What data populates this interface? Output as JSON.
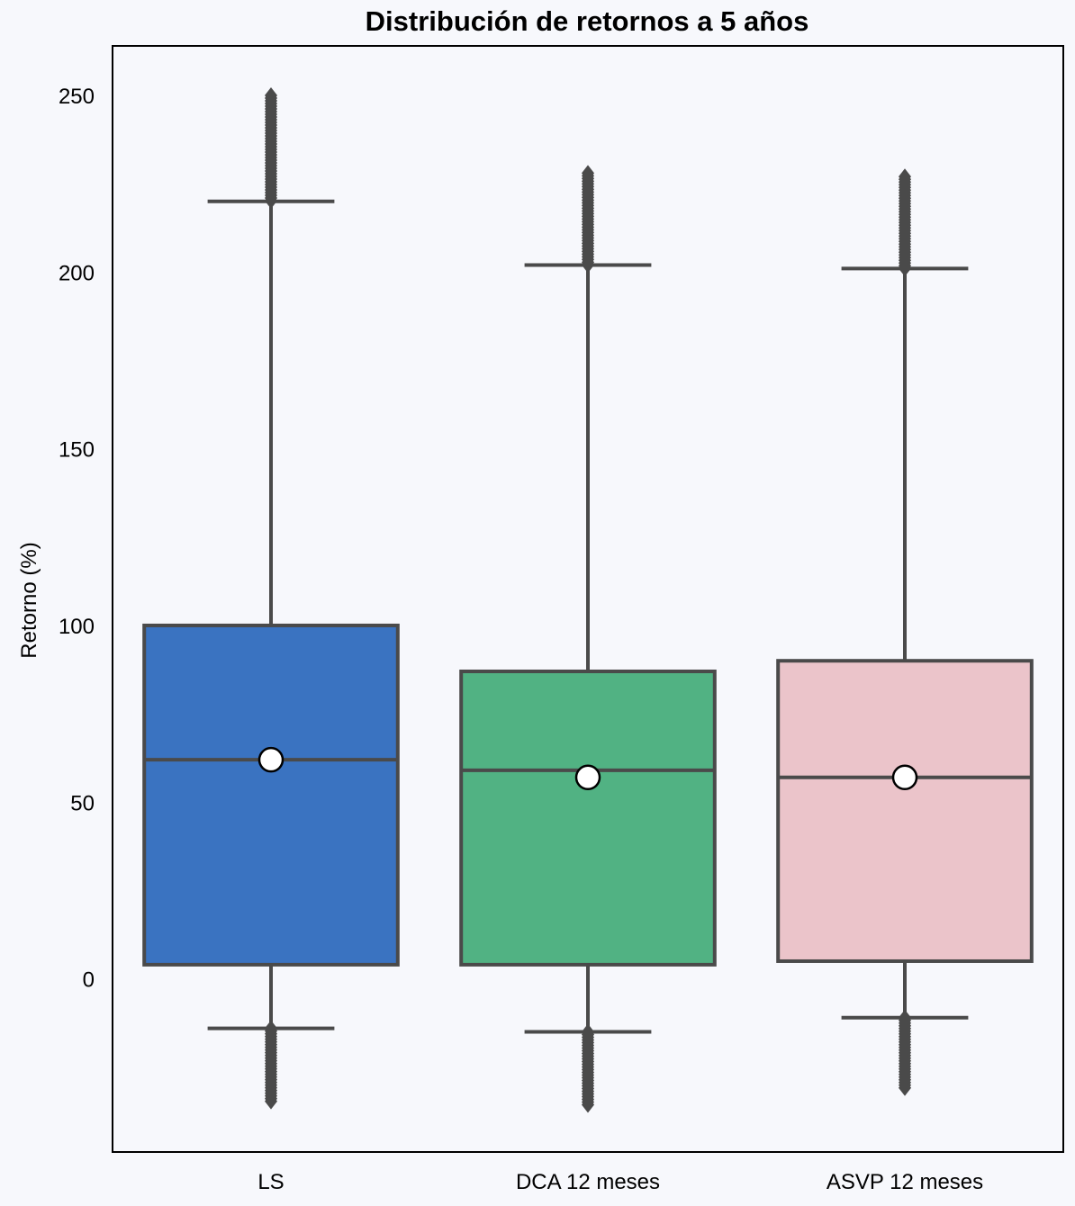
{
  "chart_data": {
    "type": "box",
    "title": "Distribución de retornos a 5 años",
    "xlabel": "",
    "ylabel": "Retorno (%)",
    "ylim": [
      -49,
      264
    ],
    "yticks": [
      0,
      50,
      100,
      150,
      200,
      250
    ],
    "categories": [
      "LS",
      "DCA 12 meses",
      "ASVP 12 meses"
    ],
    "grid": false,
    "legend": "none",
    "boxes": [
      {
        "category": "LS",
        "color": "#3a73c1",
        "whisker_low": -14,
        "q1": 4,
        "median": 62,
        "q3": 100,
        "whisker_high": 220,
        "mean": 62,
        "outliers_low_range": [
          -35,
          -14
        ],
        "outliers_high_range": [
          220,
          250
        ]
      },
      {
        "category": "DCA 12 meses",
        "color": "#51b283",
        "whisker_low": -15,
        "q1": 4,
        "median": 59,
        "q3": 87,
        "whisker_high": 202,
        "mean": 57,
        "outliers_low_range": [
          -36,
          -15
        ],
        "outliers_high_range": [
          202,
          228
        ]
      },
      {
        "category": "ASVP 12 meses",
        "color": "#ebc4ca",
        "whisker_low": -11,
        "q1": 5,
        "median": 57,
        "q3": 90,
        "whisker_high": 201,
        "mean": 57,
        "outliers_low_range": [
          -31,
          -11
        ],
        "outliers_high_range": [
          201,
          227
        ]
      }
    ]
  }
}
